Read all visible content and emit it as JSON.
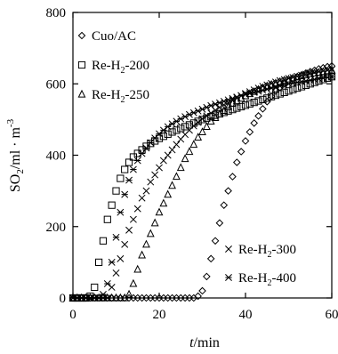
{
  "chart_data": {
    "type": "scatter",
    "xlabel_var": "t",
    "xlabel_unit": "/min",
    "ylabel_main": "SO",
    "ylabel_sub": "2",
    "ylabel_unit_main": "/ml · m",
    "ylabel_unit_sup": "-3",
    "xlim": [
      0,
      60
    ],
    "ylim": [
      0,
      800
    ],
    "x_ticks": [
      0,
      20,
      40,
      60
    ],
    "y_ticks": [
      0,
      200,
      400,
      600,
      800
    ],
    "grid": false,
    "series": [
      {
        "name": "Cuo/AC",
        "label_main": "Cuo/AC",
        "label_sub": "",
        "label_tail": "",
        "marker": "diamond",
        "x": [
          0,
          1,
          2,
          3,
          4,
          5,
          6,
          7,
          8,
          9,
          10,
          11,
          12,
          13,
          14,
          15,
          16,
          17,
          18,
          19,
          20,
          21,
          22,
          23,
          24,
          25,
          26,
          27,
          28,
          29,
          30,
          31,
          32,
          33,
          34,
          35,
          36,
          37,
          38,
          39,
          40,
          41,
          42,
          43,
          44,
          45,
          46,
          47,
          48,
          49,
          50,
          51,
          52,
          53,
          54,
          55,
          56,
          57,
          58,
          59,
          60
        ],
        "y": [
          0,
          0,
          0,
          0,
          0,
          0,
          0,
          0,
          0,
          0,
          0,
          0,
          0,
          0,
          0,
          0,
          0,
          0,
          0,
          0,
          0,
          0,
          0,
          0,
          0,
          0,
          0,
          0,
          0,
          5,
          20,
          60,
          110,
          160,
          210,
          260,
          300,
          340,
          380,
          410,
          440,
          465,
          490,
          510,
          530,
          550,
          565,
          580,
          590,
          600,
          608,
          615,
          620,
          625,
          630,
          634,
          638,
          642,
          645,
          648,
          650
        ]
      },
      {
        "name": "Re-H2-200",
        "label_main": "Re-H",
        "label_sub": "2",
        "label_tail": "-200",
        "marker": "square",
        "x": [
          0,
          1,
          2,
          3,
          4,
          5,
          6,
          7,
          8,
          9,
          10,
          11,
          12,
          13,
          14,
          15,
          16,
          17,
          18,
          19,
          20,
          21,
          22,
          23,
          24,
          25,
          26,
          27,
          28,
          29,
          30,
          31,
          32,
          33,
          34,
          35,
          36,
          37,
          38,
          39,
          40,
          41,
          42,
          43,
          44,
          45,
          46,
          47,
          48,
          49,
          50,
          51,
          52,
          53,
          54,
          55,
          56,
          57,
          58,
          59,
          60
        ],
        "y": [
          0,
          0,
          0,
          0,
          5,
          30,
          100,
          160,
          220,
          260,
          300,
          335,
          360,
          380,
          395,
          405,
          415,
          425,
          433,
          440,
          447,
          453,
          459,
          465,
          470,
          475,
          480,
          485,
          490,
          495,
          500,
          504,
          508,
          512,
          516,
          520,
          524,
          528,
          532,
          536,
          540,
          544,
          548,
          552,
          556,
          560,
          564,
          568,
          572,
          576,
          580,
          584,
          588,
          592,
          596,
          600,
          604,
          608,
          612,
          616,
          620
        ]
      },
      {
        "name": "Re-H2-250",
        "label_main": "Re-H",
        "label_sub": "2",
        "label_tail": "-250",
        "marker": "triangle",
        "x": [
          0,
          1,
          2,
          3,
          4,
          5,
          6,
          7,
          8,
          9,
          10,
          11,
          12,
          13,
          14,
          15,
          16,
          17,
          18,
          19,
          20,
          21,
          22,
          23,
          24,
          25,
          26,
          27,
          28,
          29,
          30,
          31,
          32,
          33,
          34,
          35,
          36,
          37,
          38,
          39,
          40,
          41,
          42,
          43,
          44,
          45,
          46,
          47,
          48,
          49,
          50,
          51,
          52,
          53,
          54,
          55,
          56,
          57,
          58,
          59,
          60
        ],
        "y": [
          0,
          0,
          0,
          0,
          0,
          0,
          0,
          0,
          0,
          0,
          0,
          0,
          0,
          10,
          40,
          80,
          120,
          150,
          180,
          210,
          240,
          265,
          290,
          315,
          340,
          365,
          390,
          410,
          430,
          450,
          465,
          480,
          495,
          505,
          515,
          525,
          535,
          545,
          552,
          559,
          566,
          572,
          578,
          584,
          589,
          594,
          598,
          602,
          606,
          610,
          613,
          616,
          619,
          622,
          625,
          628,
          630,
          632,
          634,
          636,
          638
        ]
      },
      {
        "name": "Re-H2-300",
        "label_main": "Re-H",
        "label_sub": "2",
        "label_tail": "-300",
        "marker": "x",
        "x": [
          0,
          1,
          2,
          3,
          4,
          5,
          6,
          7,
          8,
          9,
          10,
          11,
          12,
          13,
          14,
          15,
          16,
          17,
          18,
          19,
          20,
          21,
          22,
          23,
          24,
          25,
          26,
          27,
          28,
          29,
          30,
          31,
          32,
          33,
          34,
          35,
          36,
          37,
          38,
          39,
          40,
          41,
          42,
          43,
          44,
          45,
          46,
          47,
          48,
          49,
          50,
          51,
          52,
          53,
          54,
          55,
          56,
          57,
          58,
          59,
          60
        ],
        "y": [
          0,
          0,
          0,
          0,
          0,
          0,
          0,
          0,
          0,
          30,
          70,
          110,
          150,
          190,
          220,
          250,
          280,
          300,
          325,
          345,
          365,
          385,
          400,
          415,
          430,
          445,
          458,
          470,
          482,
          492,
          502,
          510,
          518,
          526,
          534,
          541,
          548,
          555,
          561,
          567,
          573,
          578,
          583,
          588,
          593,
          597,
          601,
          605,
          609,
          612,
          615,
          618,
          621,
          624,
          627,
          630,
          632,
          634,
          636,
          638,
          640
        ]
      },
      {
        "name": "Re-H2-400",
        "label_main": "Re-H",
        "label_sub": "2",
        "label_tail": "-400",
        "marker": "asterisk",
        "x": [
          0,
          1,
          2,
          3,
          4,
          5,
          6,
          7,
          8,
          9,
          10,
          11,
          12,
          13,
          14,
          15,
          16,
          17,
          18,
          19,
          20,
          21,
          22,
          23,
          24,
          25,
          26,
          27,
          28,
          29,
          30,
          31,
          32,
          33,
          34,
          35,
          36,
          37,
          38,
          39,
          40,
          41,
          42,
          43,
          44,
          45,
          46,
          47,
          48,
          49,
          50,
          51,
          52,
          53,
          54,
          55,
          56,
          57,
          58,
          59,
          60
        ],
        "y": [
          0,
          0,
          0,
          0,
          0,
          0,
          0,
          10,
          40,
          100,
          170,
          240,
          290,
          330,
          360,
          385,
          405,
          420,
          435,
          448,
          460,
          470,
          480,
          488,
          495,
          502,
          508,
          514,
          519,
          524,
          529,
          534,
          539,
          543,
          547,
          551,
          555,
          559,
          563,
          567,
          570,
          573,
          576,
          579,
          582,
          585,
          588,
          591,
          594,
          597,
          600,
          602,
          604,
          606,
          608,
          610,
          612,
          614,
          616,
          618,
          620
        ]
      }
    ]
  }
}
